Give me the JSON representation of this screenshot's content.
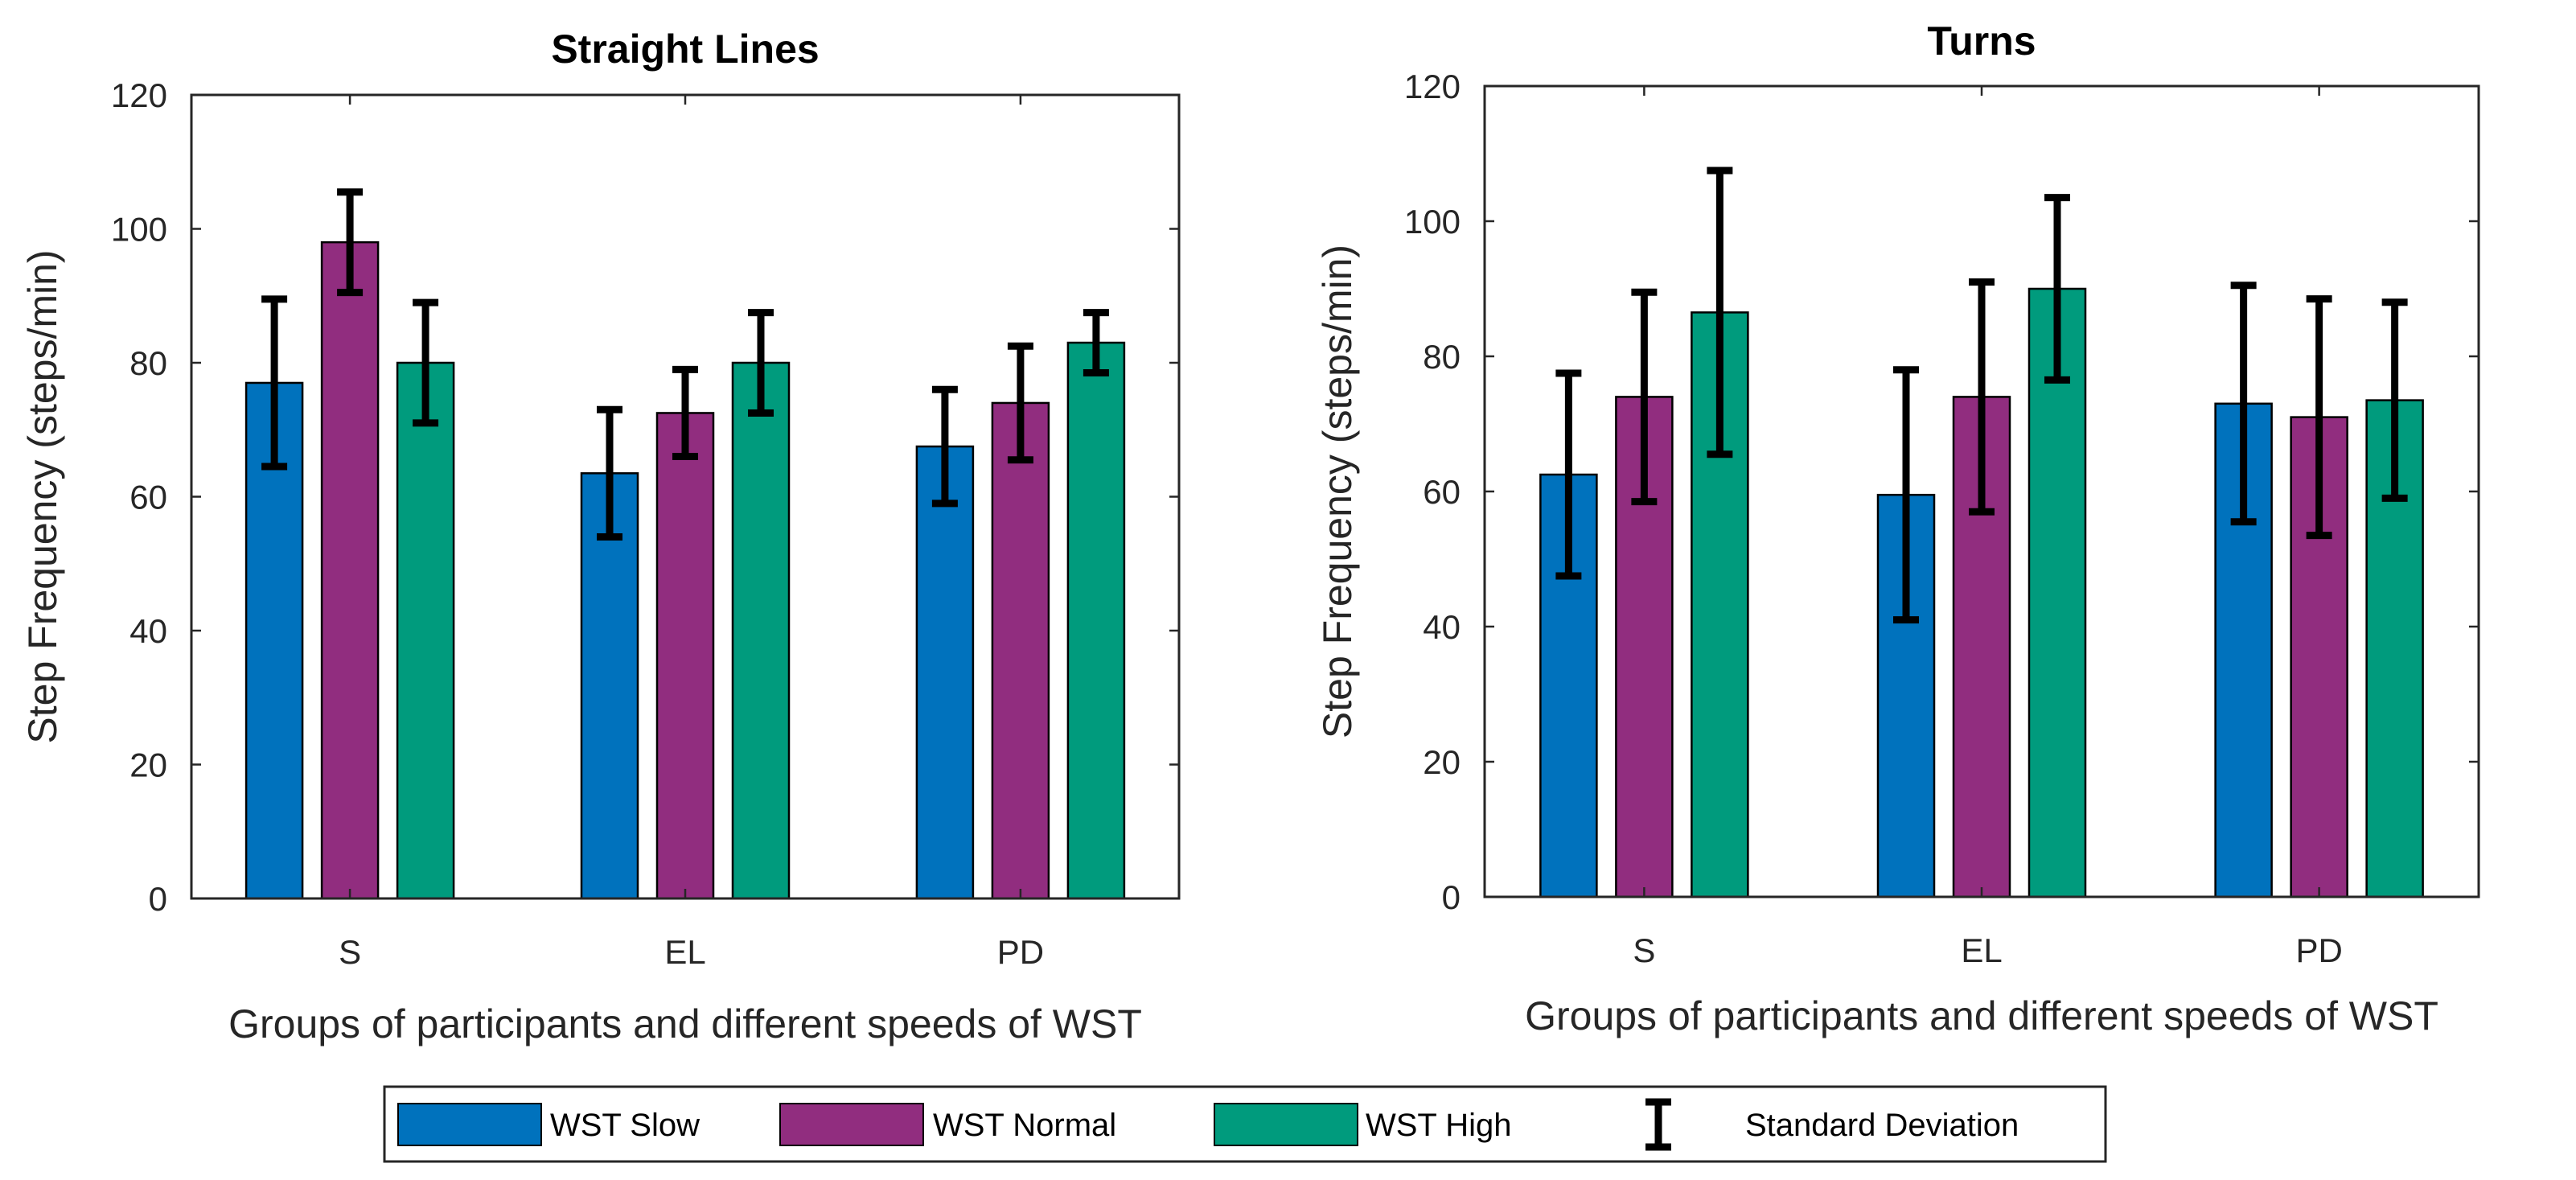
{
  "chart_data": [
    {
      "type": "bar",
      "title": "Straight Lines",
      "xlabel": "Groups of participants and different speeds of WST",
      "ylabel": "Step Frequency (steps/min)",
      "ylim": [
        0,
        120
      ],
      "yticks": [
        0,
        20,
        40,
        60,
        80,
        100,
        120
      ],
      "categories": [
        "S",
        "EL",
        "PD"
      ],
      "series": [
        {
          "name": "WST Slow",
          "values": [
            77,
            63.5,
            67.5
          ],
          "std": [
            12.5,
            9.5,
            8.5
          ]
        },
        {
          "name": "WST Normal",
          "values": [
            98,
            72.5,
            74
          ],
          "std": [
            7.5,
            6.5,
            8.5
          ]
        },
        {
          "name": "WST High",
          "values": [
            80,
            80,
            83
          ],
          "std": [
            9,
            7.5,
            4.5
          ]
        }
      ]
    },
    {
      "type": "bar",
      "title": "Turns",
      "xlabel": "Groups of participants and different speeds of WST",
      "ylabel": "Step Frequency (steps/min)",
      "ylim": [
        0,
        120
      ],
      "yticks": [
        0,
        20,
        40,
        60,
        80,
        100,
        120
      ],
      "categories": [
        "S",
        "EL",
        "PD"
      ],
      "series": [
        {
          "name": "WST Slow",
          "values": [
            62.5,
            59.5,
            73
          ],
          "std": [
            15,
            18.5,
            17.5
          ]
        },
        {
          "name": "WST Normal",
          "values": [
            74,
            74,
            71
          ],
          "std": [
            15.5,
            17,
            17.5
          ]
        },
        {
          "name": "WST High",
          "values": [
            86.5,
            90,
            73.5
          ],
          "std": [
            21,
            13.5,
            14.5
          ]
        }
      ]
    }
  ],
  "legend": {
    "items": [
      "WST Slow",
      "WST Normal",
      "WST High"
    ],
    "std_label": "Standard Deviation"
  },
  "colors": {
    "WST Slow": "#0072BD",
    "WST Normal": "#912D7F",
    "WST High": "#009B7D",
    "errorbar": "#000000",
    "axis": "#262626"
  }
}
